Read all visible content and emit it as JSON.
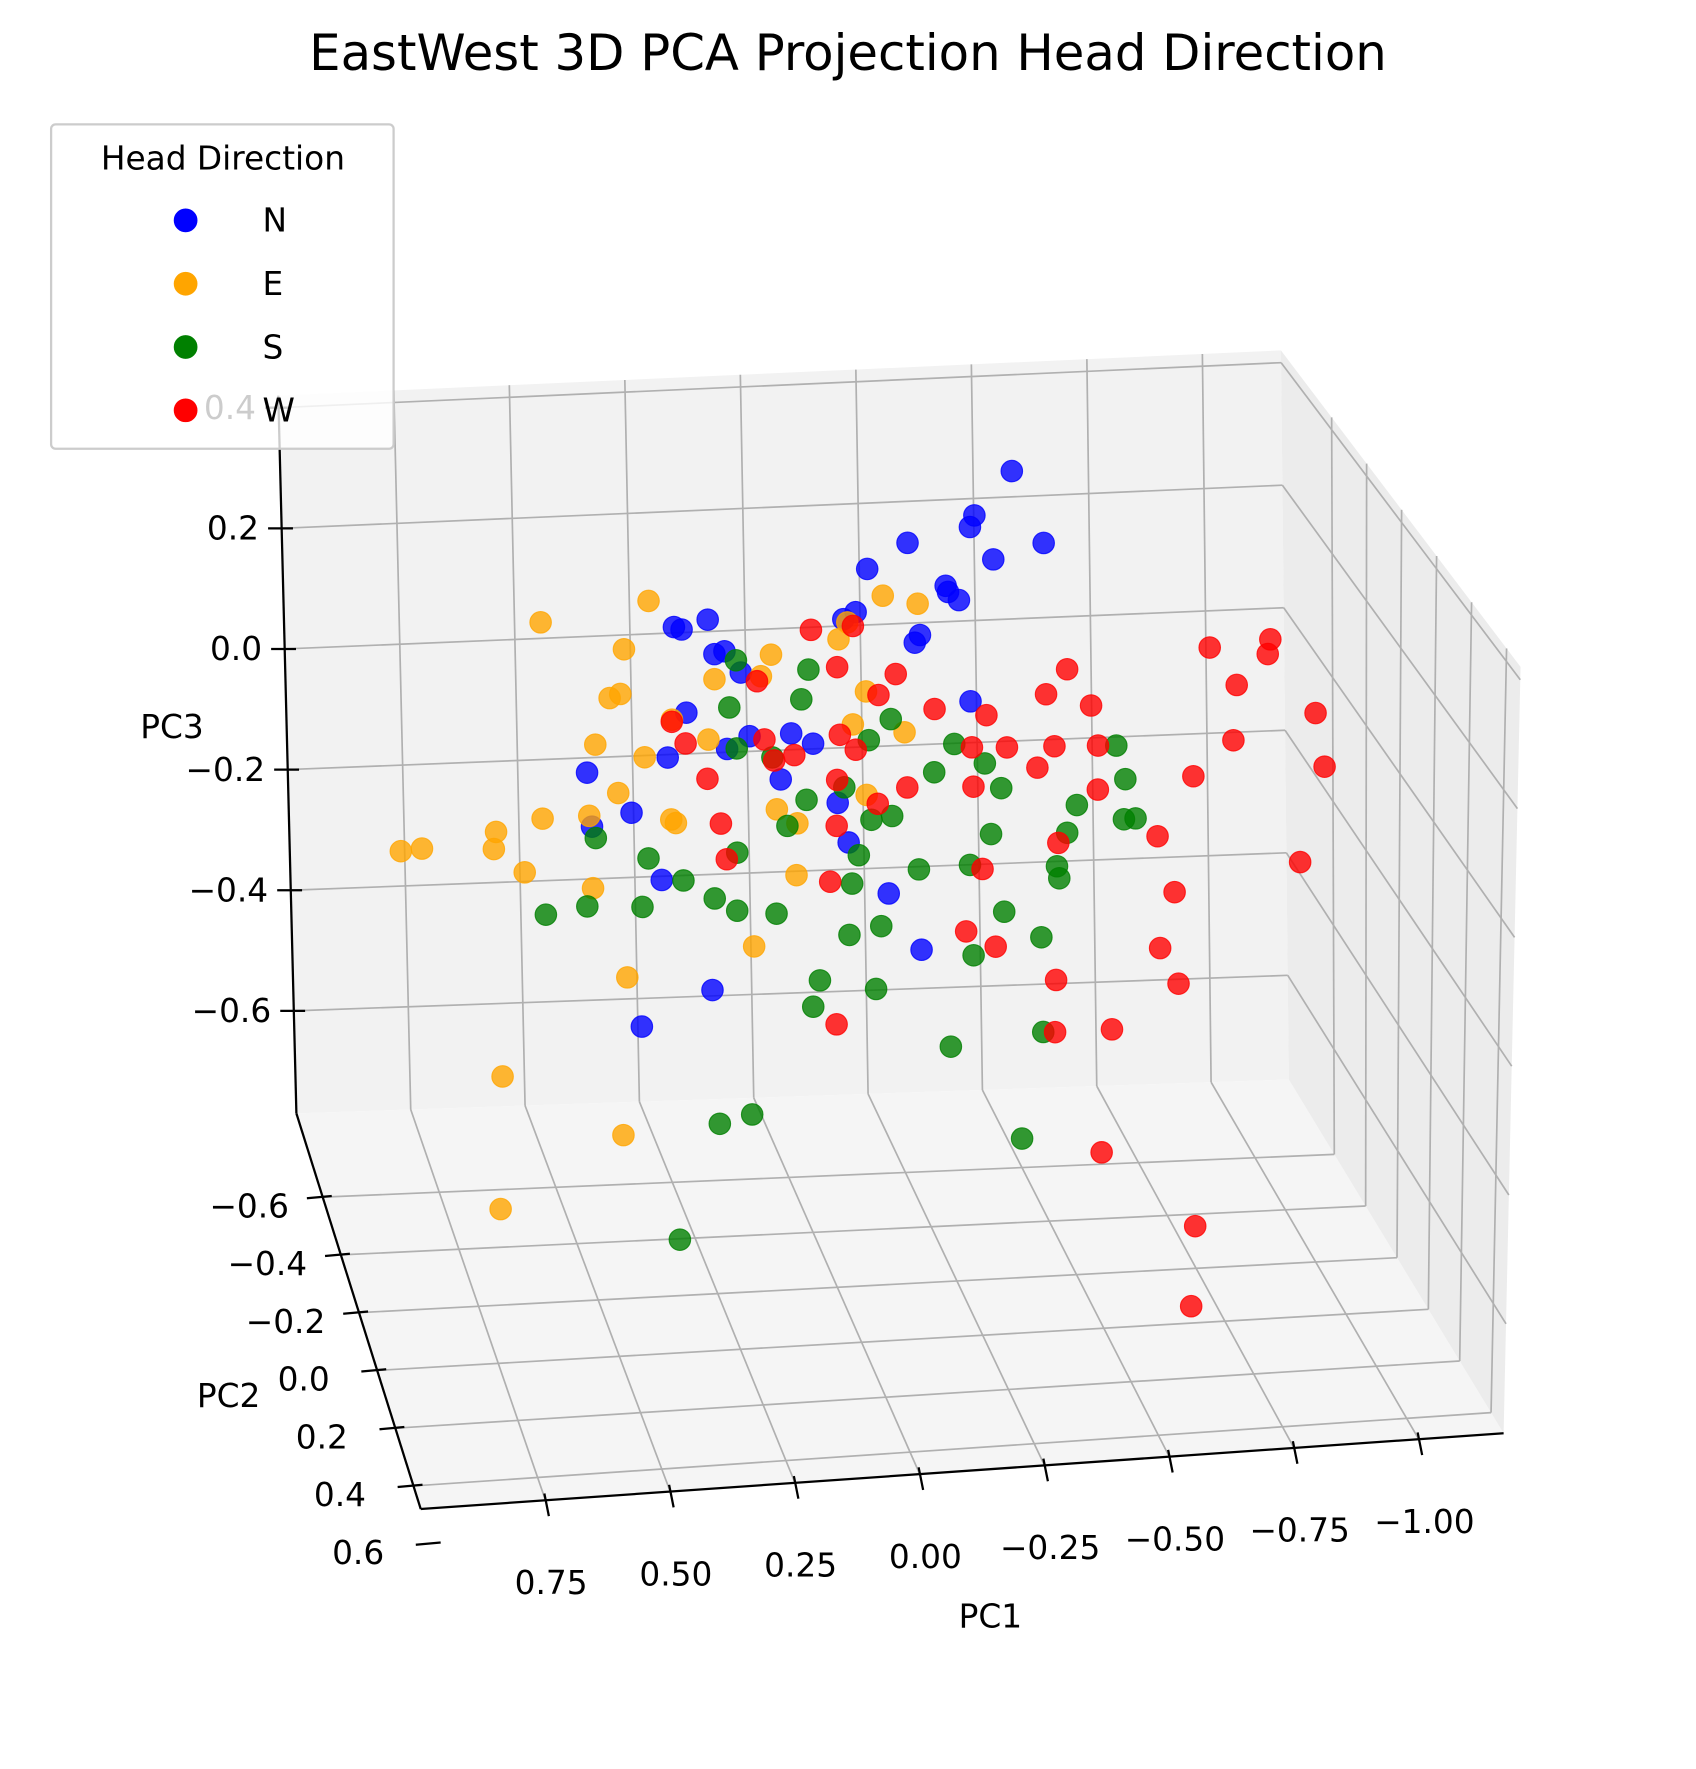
{
  "chart_data": {
    "type": "scatter3d",
    "title": "EastWest 3D PCA Projection Head Direction",
    "xlabel": "PC1",
    "ylabel": "PC2",
    "zlabel": "PC3",
    "xlim": [
      -1.17,
      1.0
    ],
    "ylim": [
      -0.89,
      0.48
    ],
    "zlim": [
      -0.77,
      0.42
    ],
    "xticks": [
      {
        "value": 0.75,
        "label": "0.75"
      },
      {
        "value": 0.5,
        "label": "0.50"
      },
      {
        "value": 0.25,
        "label": "0.25"
      },
      {
        "value": 0,
        "label": "0.00"
      },
      {
        "value": -0.25,
        "label": "−0.25"
      },
      {
        "value": -0.5,
        "label": "−0.50"
      },
      {
        "value": -0.75,
        "label": "−0.75"
      },
      {
        "value": -1,
        "label": "−1.00"
      }
    ],
    "yticks": [
      {
        "value": -0.6,
        "label": "−0.6"
      },
      {
        "value": -0.4,
        "label": "−0.4"
      },
      {
        "value": -0.2,
        "label": "−0.2"
      },
      {
        "value": 0,
        "label": "0.0"
      },
      0.2,
      0.4,
      0.6
    ],
    "zticks": [
      {
        "value": -0.6,
        "label": "−0.6"
      },
      {
        "value": -0.4,
        "label": "−0.4"
      },
      {
        "value": -0.2,
        "label": "−0.2"
      },
      {
        "value": 0,
        "label": "0.0"
      },
      0.2,
      0.4
    ],
    "grid": true,
    "legend_title": "Head Direction",
    "legend": "upper left",
    "series": [
      {
        "name": "N",
        "color": "blue",
        "x": [
          -0.4,
          -0.3,
          -0.14,
          -0.3,
          -0.33,
          -0.46,
          -0.21,
          -0.23,
          -0.08,
          0.29,
          -0.01,
          -0.05,
          -0.16,
          -0.28,
          0.32,
          0.25,
          0.32,
          0.26,
          -0.17,
          -0.25,
          0.2,
          0.3,
          0.19,
          0.09,
          0.37,
          0.5,
          0.43,
          0.5,
          -0.01,
          -0.11,
          0.35,
          -0.17,
          0.28,
          0.4,
          0.05,
          0.01,
          0.21,
          0.12
        ],
        "y": [
          -0.32,
          -0.25,
          -0.18,
          -0.28,
          -0.22,
          -0.3,
          -0.15,
          -0.2,
          -0.26,
          -0.12,
          -0.19,
          -0.24,
          -0.16,
          -0.29,
          -0.21,
          -0.14,
          -0.27,
          -0.18,
          -0.23,
          -0.11,
          -0.2,
          -0.25,
          -0.17,
          -0.22,
          -0.13,
          -0.28,
          -0.19,
          -0.24,
          -0.15,
          -0.21,
          -0.26,
          -0.18,
          -0.12,
          -0.23,
          -0.2,
          -0.16,
          -0.27,
          -0.19
        ],
        "z": [
          0.47,
          0.43,
          0.42,
          0.4,
          0.37,
          0.36,
          0.36,
          0.33,
          0.35,
          0.34,
          0.3,
          0.29,
          0.28,
          0.28,
          0.29,
          0.28,
          0.27,
          0.26,
          0.24,
          0.19,
          0.22,
          0.14,
          0.13,
          0.11,
          0.12,
          0.04,
          0.01,
          -0.03,
          -0.04,
          -0.15,
          -0.13,
          -0.23,
          -0.25,
          -0.35,
          0.1,
          0.02,
          0.07,
          0.05
        ]
      },
      {
        "name": "E",
        "color": "orange",
        "x": [
          0.61,
          0.45,
          0.37,
          0.49,
          0.44,
          0.14,
          -0.02,
          -0.08,
          -0.17,
          -0.05,
          0.26,
          0.15,
          -0.01,
          -0.08,
          -0.14,
          0.41,
          0.33,
          0.27,
          0.48,
          0.53,
          0.45,
          0.35,
          0.32,
          0.61,
          0.73,
          0.7,
          0.87,
          0.89,
          0.65,
          0.52,
          0.43,
          0.7,
          0.43,
          0.72,
          0.16,
          0.09,
          0.12,
          -0.05,
          0.08
        ],
        "y": [
          -0.22,
          -0.17,
          -0.28,
          -0.13,
          -0.24,
          -0.19,
          -0.26,
          -0.15,
          -0.21,
          -0.3,
          -0.18,
          -0.23,
          -0.12,
          -0.27,
          -0.2,
          -0.16,
          -0.25,
          -0.19,
          -0.29,
          -0.14,
          -0.22,
          -0.18,
          -0.26,
          -0.21,
          -0.13,
          -0.24,
          -0.17,
          -0.28,
          -0.2,
          -0.15,
          -0.23,
          -0.19,
          -0.27,
          -0.12,
          -0.25,
          -0.18,
          -0.22,
          -0.16,
          -0.21
        ],
        "z": [
          0.31,
          0.28,
          0.31,
          0.22,
          0.18,
          0.25,
          0.24,
          0.35,
          0.31,
          0.25,
          0.22,
          0.2,
          0.16,
          0.15,
          0.11,
          0.11,
          0.13,
          0.12,
          0.08,
          0.03,
          0.03,
          0.0,
          -0.04,
          0.0,
          -0.01,
          -0.03,
          -0.02,
          -0.07,
          -0.08,
          -0.09,
          -0.27,
          -0.4,
          -0.54,
          -0.58,
          -0.24,
          -0.1,
          -0.01,
          0.03,
          -0.03
        ]
      },
      {
        "name": "S",
        "color": "green",
        "x": [
          0.21,
          0.24,
          0.04,
          0.08,
          -0.12,
          -0.28,
          -0.08,
          -0.19,
          -0.27,
          -0.58,
          -0.58,
          0.19,
          0.14,
          -0.35,
          -0.25,
          0.05,
          -0.06,
          -0.14,
          -0.32,
          -0.46,
          -0.52,
          -0.59,
          -0.63,
          -0.43,
          0.38,
          0.33,
          0.48,
          0.52,
          0.42,
          0.59,
          0.26,
          0.2,
          0.15,
          0.09,
          -0.02,
          -0.07,
          -0.17,
          -0.33,
          0.19,
          -0.02,
          -0.1,
          0.06,
          -0.44,
          -0.07,
          -0.31,
          0.05,
          -0.22,
          -0.45,
          0.25,
          0.17,
          0.35,
          -0.4,
          -0.45,
          -0.04
        ],
        "y": [
          -0.2,
          -0.14,
          -0.27,
          -0.18,
          -0.23,
          -0.11,
          -0.25,
          -0.16,
          -0.29,
          -0.2,
          -0.14,
          -0.27,
          -0.18,
          -0.23,
          -0.11,
          -0.25,
          -0.16,
          -0.29,
          -0.2,
          -0.14,
          -0.27,
          -0.18,
          -0.23,
          -0.11,
          -0.25,
          -0.16,
          -0.29,
          -0.2,
          -0.14,
          -0.27,
          -0.18,
          -0.23,
          -0.11,
          -0.25,
          -0.16,
          -0.29,
          -0.2,
          -0.14,
          -0.27,
          -0.18,
          -0.23,
          -0.11,
          -0.25,
          -0.16,
          -0.29,
          -0.2,
          -0.14,
          -0.27,
          -0.18,
          -0.23,
          -0.11,
          -0.25,
          -0.16,
          -0.29
        ],
        "z": [
          0.24,
          0.19,
          0.19,
          0.18,
          0.12,
          0.09,
          0.08,
          0.06,
          0.05,
          0.07,
          0.04,
          0.07,
          0.09,
          0.0,
          -0.07,
          -0.01,
          -0.01,
          -0.06,
          -0.06,
          -0.04,
          -0.05,
          -0.04,
          -0.06,
          -0.08,
          -0.09,
          -0.09,
          -0.07,
          -0.14,
          -0.12,
          -0.18,
          -0.13,
          -0.08,
          -0.13,
          -0.05,
          -0.11,
          -0.12,
          -0.11,
          -0.16,
          -0.19,
          -0.2,
          -0.21,
          -0.24,
          -0.25,
          -0.28,
          -0.29,
          -0.32,
          -0.37,
          -0.41,
          -0.49,
          -0.5,
          -0.64,
          -0.57,
          -0.12,
          -0.01
        ]
      },
      {
        "name": "W",
        "color": "red",
        "x": [
          0.06,
          -0.05,
          -0.87,
          -0.78,
          -0.93,
          -0.11,
          -0.49,
          0.0,
          -0.08,
          0.15,
          0.17,
          -0.44,
          -0.86,
          -0.98,
          -0.54,
          -0.31,
          0.0,
          -0.22,
          -0.52,
          -0.83,
          0.32,
          0.1,
          -0.05,
          -0.28,
          -0.41,
          -0.47,
          -0.52,
          -1.02,
          -0.38,
          0.28,
          0.12,
          0.0,
          -0.14,
          -0.76,
          0.26,
          -0.09,
          -0.31,
          0.24,
          -0.01,
          -0.46,
          -0.66,
          -0.32,
          -0.68,
          -0.97,
          -0.01,
          -0.66,
          -0.28,
          -0.33,
          -0.45,
          -0.73,
          0.02,
          -0.46,
          -0.6,
          -0.54,
          -0.76,
          -0.74,
          0.32
        ],
        "y": [
          -0.18,
          -0.26,
          -0.13,
          -0.22,
          -0.29,
          -0.16,
          -0.24,
          -0.2,
          -0.18,
          -0.26,
          -0.13,
          -0.22,
          -0.29,
          -0.16,
          -0.24,
          -0.2,
          -0.18,
          -0.26,
          -0.13,
          -0.22,
          -0.29,
          -0.16,
          -0.24,
          -0.2,
          -0.18,
          -0.26,
          -0.13,
          -0.22,
          -0.29,
          -0.16,
          -0.24,
          -0.2,
          -0.18,
          -0.26,
          -0.13,
          -0.22,
          -0.29,
          -0.16,
          -0.24,
          -0.2,
          -0.18,
          -0.26,
          -0.13,
          -0.22,
          -0.29,
          -0.16,
          -0.24,
          -0.2,
          -0.18,
          -0.26,
          -0.13,
          -0.22,
          -0.29,
          -0.16,
          -0.24,
          -0.2,
          -0.18
        ],
        "z": [
          0.29,
          0.26,
          0.23,
          0.21,
          0.19,
          0.22,
          0.18,
          0.22,
          0.18,
          0.18,
          0.14,
          0.15,
          0.12,
          0.12,
          0.12,
          0.13,
          0.12,
          0.12,
          0.1,
          0.06,
          0.11,
          0.1,
          0.07,
          0.08,
          0.05,
          0.05,
          0.03,
          0.01,
          0.04,
          0.07,
          0.06,
          0.04,
          0.03,
          -0.01,
          0.01,
          -0.01,
          -0.02,
          -0.06,
          -0.05,
          -0.08,
          -0.07,
          -0.14,
          -0.14,
          -0.14,
          -0.16,
          -0.24,
          -0.23,
          -0.24,
          -0.29,
          -0.34,
          -0.32,
          -0.39,
          -0.42,
          -0.56,
          -0.72,
          -0.83,
          0.12
        ]
      }
    ]
  }
}
